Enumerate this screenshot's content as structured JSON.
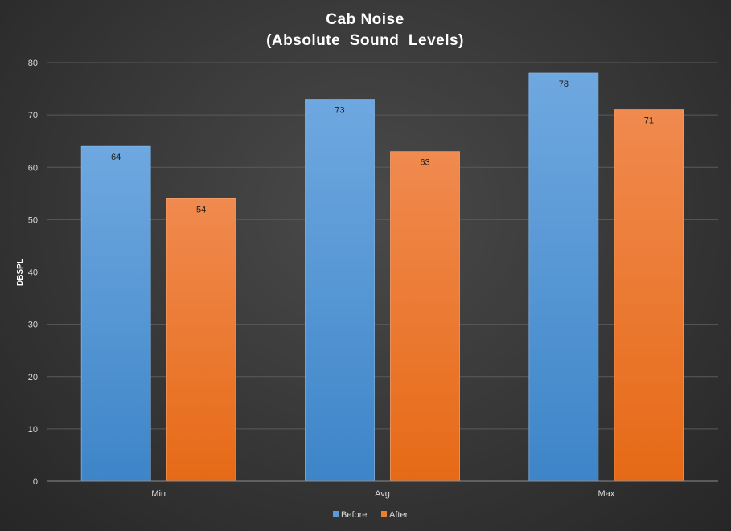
{
  "chart_data": {
    "type": "bar",
    "title_lines": [
      "Cab Noise",
      "(Absolute  Sound  Levels)"
    ],
    "xlabel": "",
    "ylabel": "DBSPL",
    "ylim": [
      0,
      80
    ],
    "yticks": [
      0,
      10,
      20,
      30,
      40,
      50,
      60,
      70,
      80
    ],
    "grid": true,
    "legend_position": "bottom",
    "categories": [
      "Min",
      "Avg",
      "Max"
    ],
    "series": [
      {
        "name": "Before",
        "values": [
          64,
          73,
          78
        ],
        "color": "#5b9bd5"
      },
      {
        "name": "After",
        "values": [
          54,
          63,
          71
        ],
        "color": "#ed7d31"
      }
    ]
  }
}
